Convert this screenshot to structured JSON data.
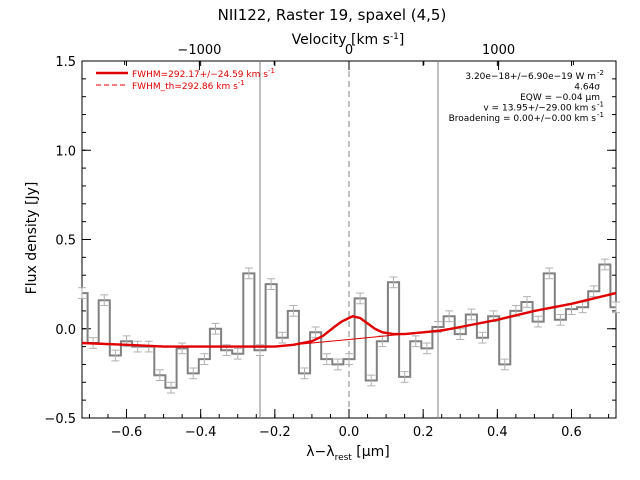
{
  "chart_data": {
    "type": "line",
    "title": "NII122, Raster 19, spaxel (4,5)",
    "xlabel": "λ−λ",
    "xlabel_sub": "rest",
    "xlabel_unit": " [μm]",
    "ylabel": "Flux density [Jy]",
    "top_axis_label": "Velocity [km s",
    "top_axis_label_sup": "-1",
    "top_axis_label_end": "]",
    "xlim": [
      -0.72,
      0.72
    ],
    "ylim": [
      -0.5,
      1.5
    ],
    "top_xlim": [
      -1785,
      1785
    ],
    "grid": false,
    "xticks": [
      -0.6,
      -0.4,
      -0.2,
      0.0,
      0.2,
      0.4,
      0.6
    ],
    "xtick_labels": [
      "−0.6",
      "−0.4",
      "−0.2",
      "0.0",
      "0.2",
      "0.4",
      "0.6"
    ],
    "yticks": [
      -0.5,
      0.0,
      0.5,
      1.0,
      1.5
    ],
    "ytick_labels": [
      "−0.5",
      "0.0",
      "0.5",
      "1.0",
      "1.5"
    ],
    "top_xticks": [
      -1000,
      0,
      1000
    ],
    "top_xtick_labels": [
      "−1000",
      "0",
      "1000"
    ],
    "vertical_lines": [
      {
        "x": -0.24,
        "style": "solid"
      },
      {
        "x": 0.0,
        "style": "dashed"
      },
      {
        "x": 0.24,
        "style": "solid"
      }
    ],
    "legend": {
      "placement": "top-left",
      "entries": [
        {
          "label": "FWHM=292.17+/−24.59 km s",
          "sup": "-1",
          "style": "solid",
          "color": "#e00000"
        },
        {
          "label": "FWHM_th=292.86 km s",
          "sup": "-1",
          "style": "dashed",
          "color": "#e00000"
        }
      ]
    },
    "annotations": [
      {
        "text": "3.20e−18+/−6.90e−19 W m",
        "sup": "-2"
      },
      {
        "text": "4.64σ",
        "sup": ""
      },
      {
        "text": "EQW = −0.04 μm",
        "sup": ""
      },
      {
        "text": "v = 13.95+/−29.00 km s",
        "sup": "-1"
      },
      {
        "text": "Broadening = 0.00+/−0.00 km s",
        "sup": "-1"
      }
    ],
    "series": [
      {
        "kind": "spectrum",
        "style": "steps",
        "color": "#808080",
        "x": [
          -0.72,
          -0.69,
          -0.66,
          -0.63,
          -0.6,
          -0.57,
          -0.54,
          -0.51,
          -0.48,
          -0.45,
          -0.42,
          -0.39,
          -0.36,
          -0.33,
          -0.3,
          -0.27,
          -0.24,
          -0.21,
          -0.18,
          -0.15,
          -0.12,
          -0.09,
          -0.06,
          -0.03,
          0.0,
          0.03,
          0.06,
          0.09,
          0.12,
          0.15,
          0.18,
          0.21,
          0.24,
          0.27,
          0.3,
          0.33,
          0.36,
          0.39,
          0.42,
          0.45,
          0.48,
          0.51,
          0.54,
          0.57,
          0.6,
          0.63,
          0.66,
          0.69,
          0.72
        ],
        "y": [
          0.2,
          -0.08,
          0.16,
          -0.15,
          -0.07,
          -0.1,
          -0.1,
          -0.26,
          -0.33,
          -0.11,
          -0.25,
          -0.17,
          0.0,
          -0.12,
          -0.14,
          0.31,
          -0.12,
          0.25,
          -0.05,
          0.1,
          -0.25,
          -0.02,
          -0.17,
          -0.2,
          -0.17,
          0.17,
          -0.29,
          -0.07,
          0.26,
          -0.27,
          -0.07,
          -0.11,
          0.01,
          0.07,
          -0.03,
          0.08,
          -0.05,
          0.07,
          -0.2,
          0.1,
          0.15,
          0.04,
          0.31,
          0.05,
          0.11,
          0.12,
          0.21,
          0.36,
          0.12
        ],
        "errors": 0.03
      },
      {
        "kind": "fit",
        "style": "solid",
        "color": "#e00000",
        "x": [
          -0.72,
          -0.6,
          -0.5,
          -0.4,
          -0.3,
          -0.2,
          -0.15,
          -0.1,
          -0.07,
          -0.04,
          -0.02,
          0.0,
          0.01,
          0.03,
          0.05,
          0.07,
          0.09,
          0.12,
          0.15,
          0.2,
          0.25,
          0.3,
          0.4,
          0.5,
          0.6,
          0.72
        ],
        "y": [
          -0.08,
          -0.09,
          -0.1,
          -0.1,
          -0.1,
          -0.1,
          -0.09,
          -0.07,
          -0.04,
          0.01,
          0.04,
          0.06,
          0.07,
          0.06,
          0.03,
          0.0,
          -0.02,
          -0.03,
          -0.03,
          -0.02,
          -0.01,
          0.01,
          0.05,
          0.1,
          0.14,
          0.2
        ]
      },
      {
        "kind": "continuum",
        "style": "solid-thin",
        "color": "#e00000",
        "x": [
          -0.72,
          -0.6,
          -0.5,
          -0.4,
          -0.3,
          -0.2,
          -0.1,
          0.0,
          0.1,
          0.2,
          0.3,
          0.4,
          0.5,
          0.6,
          0.72
        ],
        "y": [
          -0.08,
          -0.09,
          -0.1,
          -0.1,
          -0.1,
          -0.1,
          -0.08,
          -0.06,
          -0.04,
          -0.02,
          0.01,
          0.05,
          0.1,
          0.14,
          0.2
        ]
      }
    ]
  }
}
